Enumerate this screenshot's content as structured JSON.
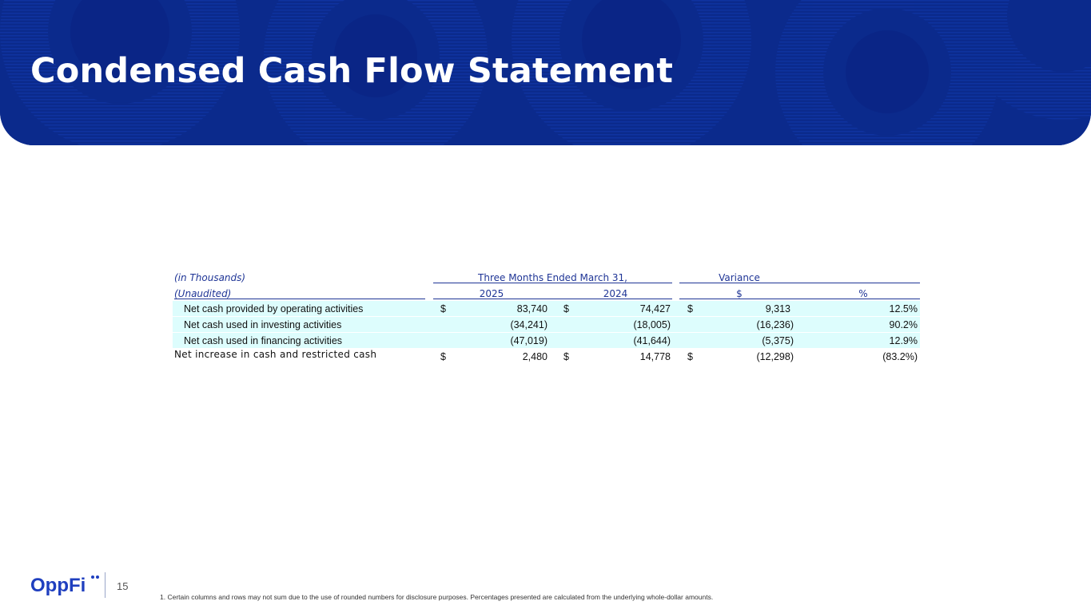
{
  "slide": {
    "title": "Condensed Cash Flow Statement",
    "page_number": "15",
    "footnote": "1.   Certain columns and rows may not sum due to the use of rounded numbers for disclosure purposes. Percentages presented are calculated from the underlying whole-dollar amounts.",
    "logo_text": "OppFi",
    "brand_color": "#0b2a8c"
  },
  "table": {
    "units_label": "(in Thousands)",
    "unaudited_label": "(Unaudited)",
    "period_header": "Three Months Ended March 31,",
    "variance_header": "Variance",
    "col_2025": "2025",
    "col_2024": "2024",
    "col_var_dollar": "$",
    "col_var_pct": "%",
    "rows": [
      {
        "label": "Net cash provided by operating activities",
        "s1": "$",
        "v2025": "83,740",
        "s2": "$",
        "v2024": "74,427",
        "s3": "$",
        "var": "9,313",
        "pct": "12.5%"
      },
      {
        "label": "Net cash used in investing activities",
        "s1": "",
        "v2025": "(34,241)",
        "s2": "",
        "v2024": "(18,005)",
        "s3": "",
        "var": "(16,236)",
        "pct": "90.2%"
      },
      {
        "label": "Net cash used in financing activities",
        "s1": "",
        "v2025": "(47,019)",
        "s2": "",
        "v2024": "(41,644)",
        "s3": "",
        "var": "(5,375)",
        "pct": "12.9%"
      },
      {
        "label": "Net increase in cash and restricted cash",
        "s1": "$",
        "v2025": "2,480",
        "s2": "$",
        "v2024": "14,778",
        "s3": "$",
        "var": "(12,298)",
        "pct": "(83.2%)"
      }
    ]
  }
}
